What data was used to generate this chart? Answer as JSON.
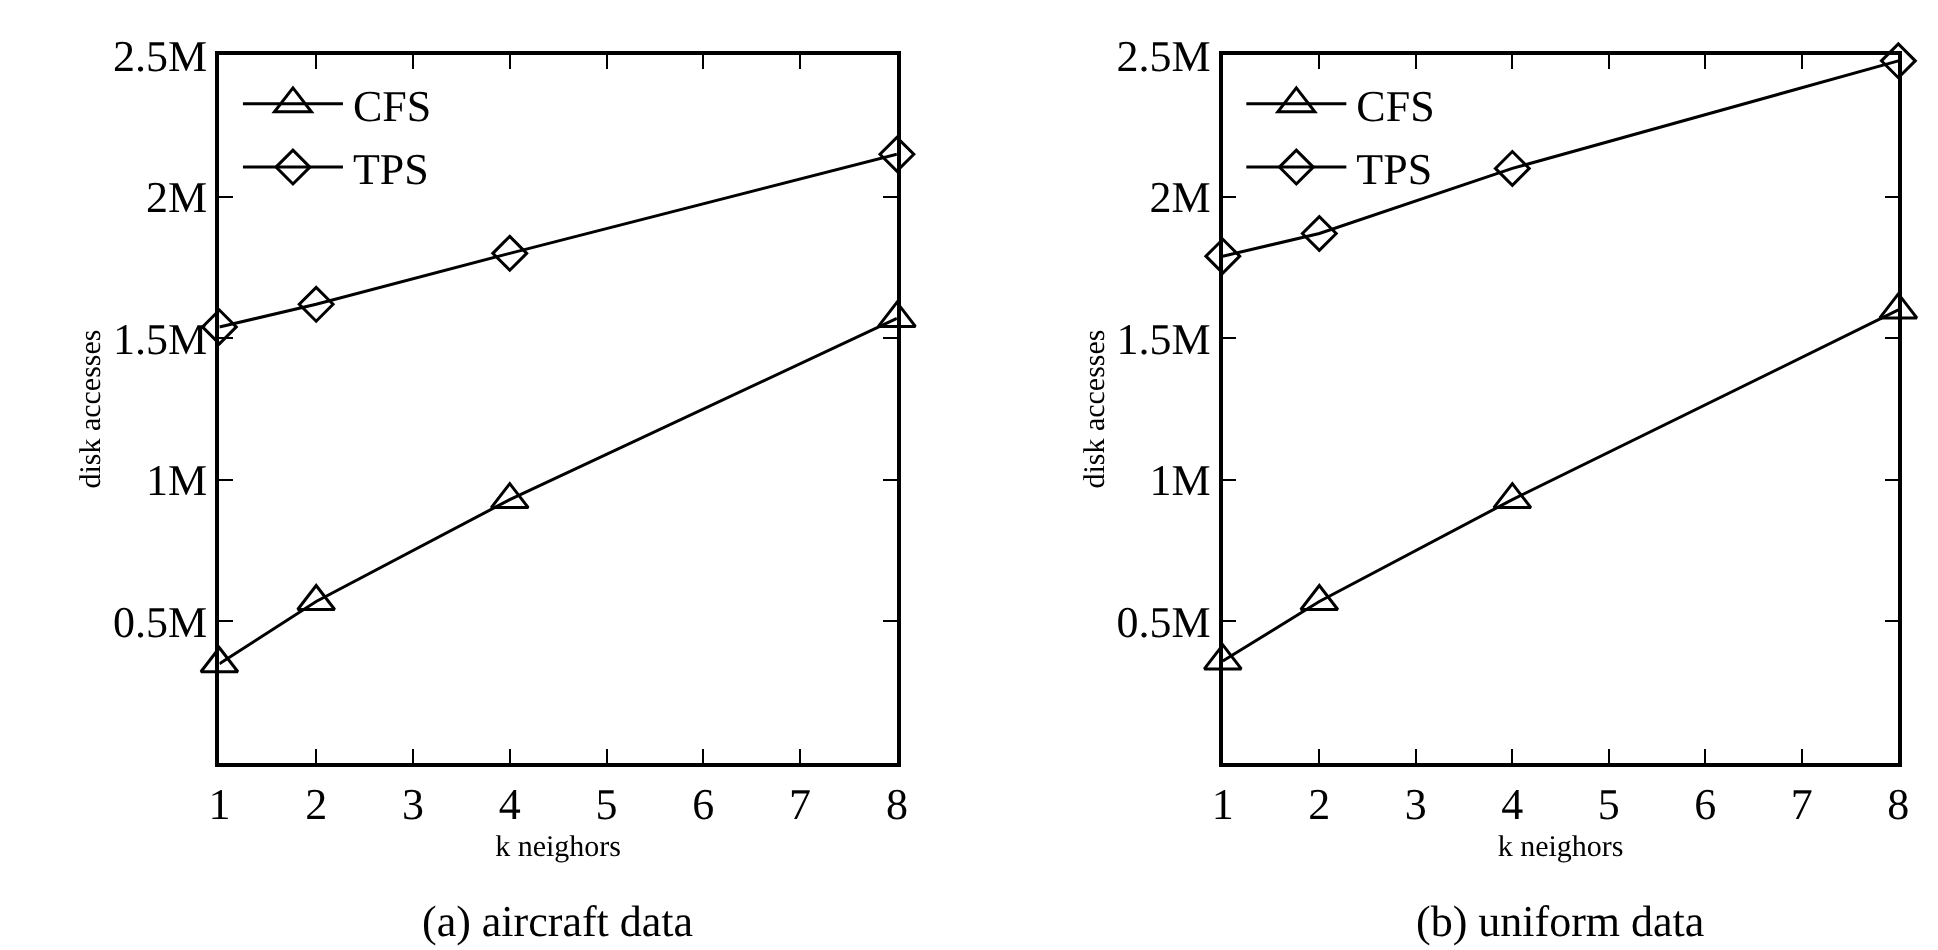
{
  "chart_data": [
    {
      "type": "line",
      "title": "(a) aircraft data",
      "xlabel": "k neighors",
      "ylabel": "disk accesses",
      "x": [
        1,
        2,
        4,
        8
      ],
      "series": [
        {
          "name": "CFS",
          "color": "#000000",
          "marker": "triangle",
          "values": [
            350000,
            570000,
            930000,
            1570000
          ]
        },
        {
          "name": "TPS",
          "color": "#000000",
          "marker": "diamond",
          "values": [
            1540000,
            1620000,
            1800000,
            2150000
          ]
        }
      ],
      "xlim": [
        1,
        8
      ],
      "xticks": [
        1,
        2,
        3,
        4,
        5,
        6,
        7,
        8
      ],
      "ylim": [
        0,
        2500000
      ],
      "yticks": [
        {
          "value": 500000,
          "label": "0.5M"
        },
        {
          "value": 1000000,
          "label": "1M"
        },
        {
          "value": 1500000,
          "label": "1.5M"
        },
        {
          "value": 2000000,
          "label": "2M"
        },
        {
          "value": 2500000,
          "label": "2.5M"
        }
      ],
      "legend": "top left",
      "line_style": "solid"
    },
    {
      "type": "line",
      "title": "(b) uniform data",
      "xlabel": "k neighors",
      "ylabel": "disk accesses",
      "x": [
        1,
        2,
        4,
        8
      ],
      "series": [
        {
          "name": "CFS",
          "color": "#000000",
          "marker": "triangle",
          "values": [
            360000,
            570000,
            930000,
            1600000
          ]
        },
        {
          "name": "TPS",
          "color": "#000000",
          "marker": "diamond",
          "values": [
            1790000,
            1870000,
            2100000,
            2480000
          ]
        }
      ],
      "xlim": [
        1,
        8
      ],
      "xticks": [
        1,
        2,
        3,
        4,
        5,
        6,
        7,
        8
      ],
      "ylim": [
        0,
        2500000
      ],
      "yticks": [
        {
          "value": 500000,
          "label": "0.5M"
        },
        {
          "value": 1000000,
          "label": "1M"
        },
        {
          "value": 1500000,
          "label": "1.5M"
        },
        {
          "value": 2000000,
          "label": "2M"
        },
        {
          "value": 2500000,
          "label": "2.5M"
        }
      ],
      "legend": "top left",
      "line_style": "solid"
    }
  ]
}
